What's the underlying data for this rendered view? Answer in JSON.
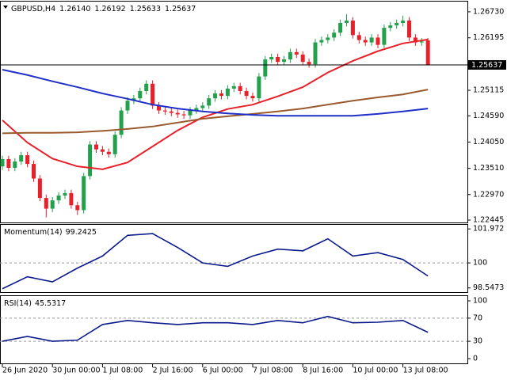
{
  "chart_data": [
    {
      "type": "candlestick",
      "title": "GBPUSD,H4",
      "title_values": [
        "1.26140",
        "1.26192",
        "1.25633",
        "1.25637"
      ],
      "categories": [
        "26 Jun 2020",
        null,
        null,
        null,
        null,
        null,
        null,
        null,
        "30 Jun 00:00",
        null,
        null,
        null,
        null,
        null,
        null,
        null,
        "1 Jul 08:00",
        null,
        null,
        null,
        null,
        null,
        null,
        null,
        "2 Jul 16:00",
        null,
        null,
        null,
        null,
        null,
        null,
        null,
        "6 Jul 00:00",
        null,
        null,
        null,
        null,
        null,
        null,
        null,
        "7 Jul 08:00",
        null,
        null,
        null,
        null,
        null,
        null,
        null,
        "8 Jul 16:00",
        null,
        null,
        null,
        null,
        null,
        null,
        null,
        "10 Jul 00:00",
        null,
        null,
        null,
        null,
        null,
        null,
        null,
        "13 Jul 08:00",
        null,
        null,
        null,
        null
      ],
      "open": [
        1.2355,
        1.237,
        1.2352,
        1.2365,
        1.2378,
        1.236,
        1.233,
        1.229,
        1.2268,
        1.2285,
        1.2295,
        1.23,
        1.2275,
        1.2265,
        1.2335,
        1.24,
        1.239,
        1.2385,
        1.238,
        1.242,
        1.247,
        1.249,
        1.2495,
        1.251,
        1.2525,
        1.248,
        1.247,
        1.2468,
        1.2465,
        1.2462,
        1.246,
        1.247,
        1.2475,
        1.248,
        1.2495,
        1.2505,
        1.25,
        1.2515,
        1.252,
        1.251,
        1.25,
        1.2495,
        1.254,
        1.2575,
        1.258,
        1.257,
        1.2575,
        1.259,
        1.2585,
        1.257,
        1.2565,
        1.261,
        1.2615,
        1.262,
        1.263,
        1.265,
        1.2655,
        1.2625,
        1.2615,
        1.261,
        1.262,
        1.2605,
        1.264,
        1.2645,
        1.265,
        1.2655,
        1.262,
        1.261,
        1.2614
      ],
      "high": [
        1.2377,
        1.2377,
        1.2372,
        1.2385,
        1.2385,
        1.2367,
        1.2337,
        1.2297,
        1.2292,
        1.2302,
        1.2307,
        1.2307,
        1.2282,
        1.2342,
        1.2407,
        1.2407,
        1.2397,
        1.2392,
        1.2427,
        1.2477,
        1.2497,
        1.2502,
        1.2517,
        1.2532,
        1.2532,
        1.2487,
        1.2477,
        1.2475,
        1.2472,
        1.2469,
        1.2477,
        1.2482,
        1.2487,
        1.2502,
        1.2512,
        1.2512,
        1.2522,
        1.2527,
        1.2527,
        1.2517,
        1.2507,
        1.2547,
        1.2582,
        1.2587,
        1.2587,
        1.2582,
        1.2597,
        1.2597,
        1.2592,
        1.2577,
        1.2617,
        1.2622,
        1.2627,
        1.2637,
        1.2657,
        1.2668,
        1.2662,
        1.2632,
        1.2622,
        1.2627,
        1.2627,
        1.2647,
        1.2652,
        1.2657,
        1.2665,
        1.2662,
        1.2627,
        1.2619,
        1.26192
      ],
      "low": [
        1.2348,
        1.2345,
        1.2345,
        1.2358,
        1.2353,
        1.2323,
        1.2283,
        1.225,
        1.2261,
        1.2278,
        1.2288,
        1.2268,
        1.2255,
        1.2258,
        1.2328,
        1.2383,
        1.2378,
        1.2373,
        1.2373,
        1.2413,
        1.2463,
        1.2483,
        1.2488,
        1.2503,
        1.2473,
        1.2463,
        1.2461,
        1.2458,
        1.2455,
        1.2453,
        1.2453,
        1.2463,
        1.2468,
        1.2473,
        1.2488,
        1.2493,
        1.2493,
        1.2508,
        1.2503,
        1.2493,
        1.2488,
        1.2488,
        1.2533,
        1.2568,
        1.2563,
        1.2563,
        1.2568,
        1.2578,
        1.2563,
        1.2558,
        1.2558,
        1.2603,
        1.2608,
        1.2613,
        1.2623,
        1.2643,
        1.2618,
        1.2608,
        1.2603,
        1.2603,
        1.2598,
        1.2598,
        1.2633,
        1.2638,
        1.2643,
        1.2613,
        1.2603,
        1.2603,
        1.25633
      ],
      "close": [
        1.237,
        1.2352,
        1.2365,
        1.2378,
        1.236,
        1.233,
        1.229,
        1.2268,
        1.2285,
        1.2295,
        1.23,
        1.2275,
        1.2265,
        1.2335,
        1.24,
        1.239,
        1.2385,
        1.238,
        1.242,
        1.247,
        1.249,
        1.2495,
        1.251,
        1.2525,
        1.248,
        1.247,
        1.2468,
        1.2465,
        1.2462,
        1.246,
        1.247,
        1.2475,
        1.248,
        1.2495,
        1.2505,
        1.25,
        1.2515,
        1.252,
        1.251,
        1.25,
        1.2495,
        1.254,
        1.2575,
        1.258,
        1.257,
        1.2575,
        1.259,
        1.2585,
        1.257,
        1.2565,
        1.261,
        1.2615,
        1.262,
        1.263,
        1.265,
        1.2655,
        1.2625,
        1.2615,
        1.261,
        1.262,
        1.2605,
        1.264,
        1.2645,
        1.265,
        1.2655,
        1.262,
        1.261,
        1.2612,
        1.25637
      ],
      "up_color": "#22a04b",
      "down_color": "#e8202a",
      "lines": [
        {
          "color": "#e8202a",
          "x": [
            0,
            4,
            8,
            12,
            16,
            20,
            24,
            28,
            32,
            36,
            40,
            44,
            48,
            52,
            56,
            60,
            64,
            68
          ],
          "values": [
            1.245,
            1.2404,
            1.2371,
            1.2355,
            1.2349,
            1.2363,
            1.2396,
            1.2429,
            1.2456,
            1.2473,
            1.2482,
            1.2499,
            1.2518,
            1.2548,
            1.2572,
            1.2592,
            1.2608,
            1.2616
          ]
        },
        {
          "color": "#9a5a2e",
          "x": [
            0,
            4,
            8,
            12,
            16,
            20,
            24,
            28,
            32,
            36,
            40,
            44,
            48,
            52,
            56,
            60,
            64,
            68
          ],
          "values": [
            1.2423,
            1.2424,
            1.2424,
            1.2425,
            1.2428,
            1.2432,
            1.2437,
            1.2445,
            1.2453,
            1.2458,
            1.2463,
            1.2468,
            1.2474,
            1.2482,
            1.249,
            1.2497,
            1.2503,
            1.2513
          ]
        },
        {
          "color": "#1f2fc8",
          "x": [
            0,
            4,
            8,
            12,
            16,
            20,
            24,
            28,
            32,
            36,
            40,
            44,
            48,
            52,
            56,
            60,
            64,
            68
          ],
          "values": [
            1.2554,
            1.2543,
            1.253,
            1.2518,
            1.2505,
            1.2494,
            1.2482,
            1.2474,
            1.2468,
            1.2464,
            1.2461,
            1.2459,
            1.2459,
            1.2459,
            1.2459,
            1.2463,
            1.2468,
            1.2474
          ]
        }
      ],
      "current_price": {
        "value": 1.25637,
        "label": "1.25637"
      },
      "ylim": [
        1.2238,
        1.2694
      ],
      "yticks": [
        {
          "value": 1.2673,
          "label": "1.26730"
        },
        {
          "value": 1.26195,
          "label": "1.26195"
        },
        {
          "value": 1.25115,
          "label": "1.25115"
        },
        {
          "value": 1.2459,
          "label": "1.24590"
        },
        {
          "value": 1.2405,
          "label": "1.24050"
        },
        {
          "value": 1.2351,
          "label": "1.23510"
        },
        {
          "value": 1.2297,
          "label": "1.22970"
        },
        {
          "value": 1.22445,
          "label": "1.22445"
        }
      ]
    },
    {
      "type": "line",
      "title": "Momentum(14)",
      "title_value": "99.2425",
      "color": "#0a1a8c",
      "x": [
        0,
        4,
        8,
        12,
        16,
        20,
        24,
        28,
        32,
        36,
        40,
        44,
        48,
        52,
        56,
        60,
        64,
        68
      ],
      "values": [
        98.5,
        99.2,
        98.9,
        99.7,
        100.4,
        101.6,
        101.7,
        100.9,
        100.0,
        99.8,
        100.4,
        100.8,
        100.7,
        101.4,
        100.4,
        100.6,
        100.2,
        99.2425
      ],
      "levels": [
        100
      ],
      "ylim": [
        98.26,
        102.21
      ],
      "yticks": [
        101.972,
        100,
        98.5473
      ]
    },
    {
      "type": "line",
      "title": "RSI(14)",
      "title_value": "45.5317",
      "color": "#0a1a8c",
      "x": [
        0,
        4,
        8,
        12,
        16,
        20,
        24,
        28,
        32,
        36,
        40,
        44,
        48,
        52,
        56,
        60,
        64,
        68
      ],
      "values": [
        30,
        38.4,
        30,
        32,
        59,
        66,
        62,
        59,
        62,
        62,
        59,
        66,
        62,
        73,
        62,
        63,
        66,
        45.5317
      ],
      "levels": [
        30,
        70
      ],
      "ylim": [
        -9.6,
        108.2
      ],
      "yticks": [
        100,
        70,
        30,
        0
      ]
    }
  ]
}
